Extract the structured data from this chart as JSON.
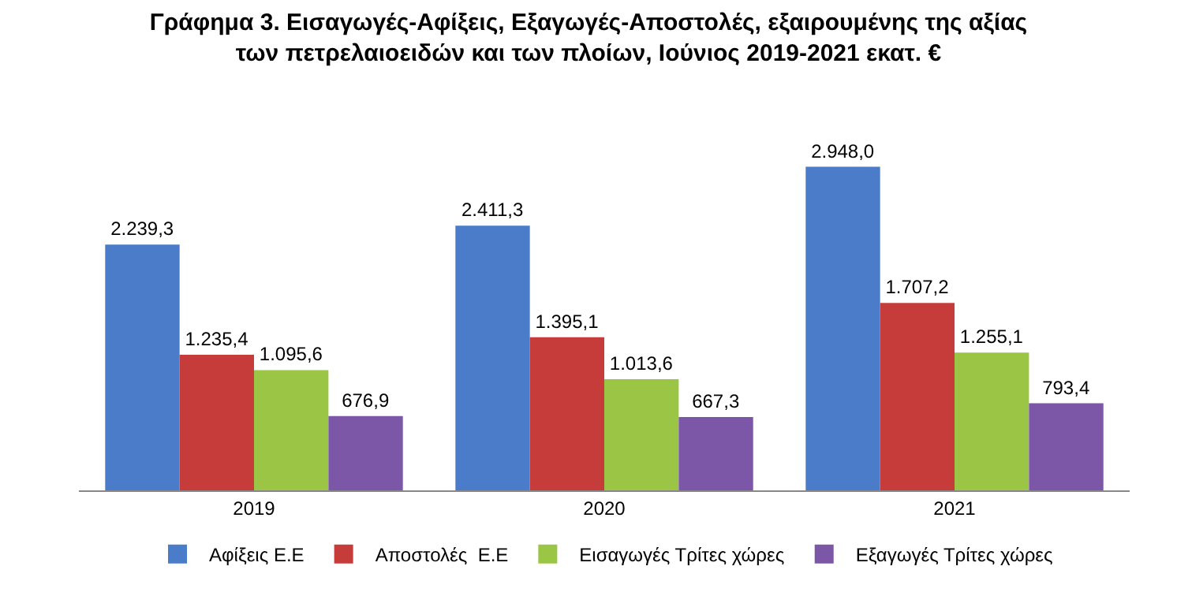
{
  "chart_data": {
    "type": "bar",
    "title": "Γράφημα 3. Εισαγωγές-Αφίξεις, Εξαγωγές-Αποστολές, εξαιρουμένης της αξίας\nτων πετρελαιοειδών και των πλοίων, Ιούνιος 2019-2021 εκατ. €",
    "categories": [
      "2019",
      "2020",
      "2021"
    ],
    "series": [
      {
        "name": "Αφίξεις Ε.Ε",
        "color": "#4a7cc9",
        "values": [
          2239.3,
          2411.3,
          2948.0
        ],
        "value_labels": [
          "2.239,3",
          "2.411,3",
          "2.948,0"
        ]
      },
      {
        "name": "Αποστολές  Ε.Ε",
        "color": "#c63c3a",
        "values": [
          1235.4,
          1395.1,
          1707.2
        ],
        "value_labels": [
          "1.235,4",
          "1.395,1",
          "1.707,2"
        ]
      },
      {
        "name": "Εισαγωγές Τρίτες χώρες",
        "color": "#9bc544",
        "values": [
          1095.6,
          1013.6,
          1255.1
        ],
        "value_labels": [
          "1.095,6",
          "1.013,6",
          "1.255,1"
        ]
      },
      {
        "name": "Εξαγωγές Τρίτες χώρες",
        "color": "#7c57a8",
        "values": [
          676.9,
          667.3,
          793.4
        ],
        "value_labels": [
          "676,9",
          "667,3",
          "793,4"
        ]
      }
    ],
    "legend": "bottom"
  }
}
